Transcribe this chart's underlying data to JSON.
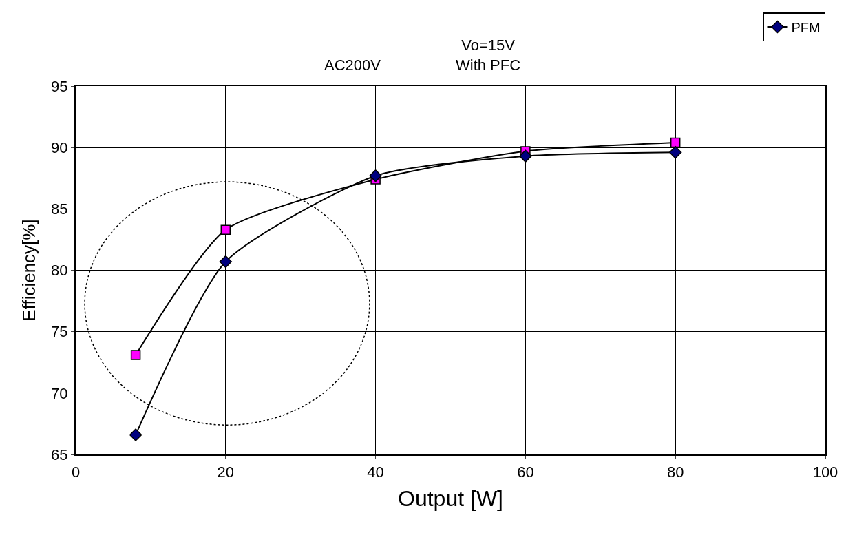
{
  "chart_data": {
    "type": "line",
    "xlabel": "Output [W]",
    "ylabel": "Efficiency[%]",
    "annotations": [
      "AC200V",
      "Vo=15V\nWith PFC"
    ],
    "x": [
      8,
      20,
      40,
      60,
      80
    ],
    "series": [
      {
        "name": "PFM",
        "color": "#000080",
        "marker": "diamond",
        "values": [
          66.6,
          80.7,
          87.7,
          89.3,
          89.6
        ]
      },
      {
        "color": "#ff00ff",
        "marker": "square",
        "values": [
          73.1,
          83.3,
          87.4,
          89.7,
          90.4
        ]
      }
    ],
    "xlim": [
      0,
      100
    ],
    "xticks": [
      0,
      20,
      40,
      60,
      80,
      100
    ],
    "ylim": [
      65,
      95
    ],
    "yticks": [
      65,
      70,
      75,
      80,
      85,
      90,
      95
    ],
    "grid": true,
    "legend": "top right"
  }
}
